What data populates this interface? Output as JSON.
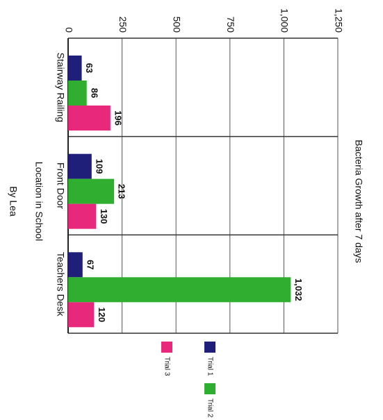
{
  "chart_data": {
    "type": "bar",
    "title": "Bacteria Growth after 7 days",
    "x_label": "Location in School",
    "author": "By Lea",
    "categories": [
      "Stairway Railing",
      "Front Door",
      "Teachers Desk"
    ],
    "series": [
      {
        "name": "Trial 1",
        "color": "#1f1f7a",
        "values": [
          63,
          109,
          67
        ]
      },
      {
        "name": "Trial 2",
        "color": "#2fae2f",
        "values": [
          86,
          213,
          1032
        ],
        "value_labels": [
          "86",
          "213",
          "1,032"
        ]
      },
      {
        "name": "Trial 3",
        "color": "#e8287a",
        "values": [
          196,
          130,
          120
        ]
      }
    ],
    "ylim": [
      0,
      1250
    ],
    "yticks": [
      0,
      250,
      500,
      750,
      {
        "value": 1000,
        "label": "1,000"
      },
      {
        "value": 1250,
        "label": "1,250"
      }
    ],
    "grid": true
  }
}
